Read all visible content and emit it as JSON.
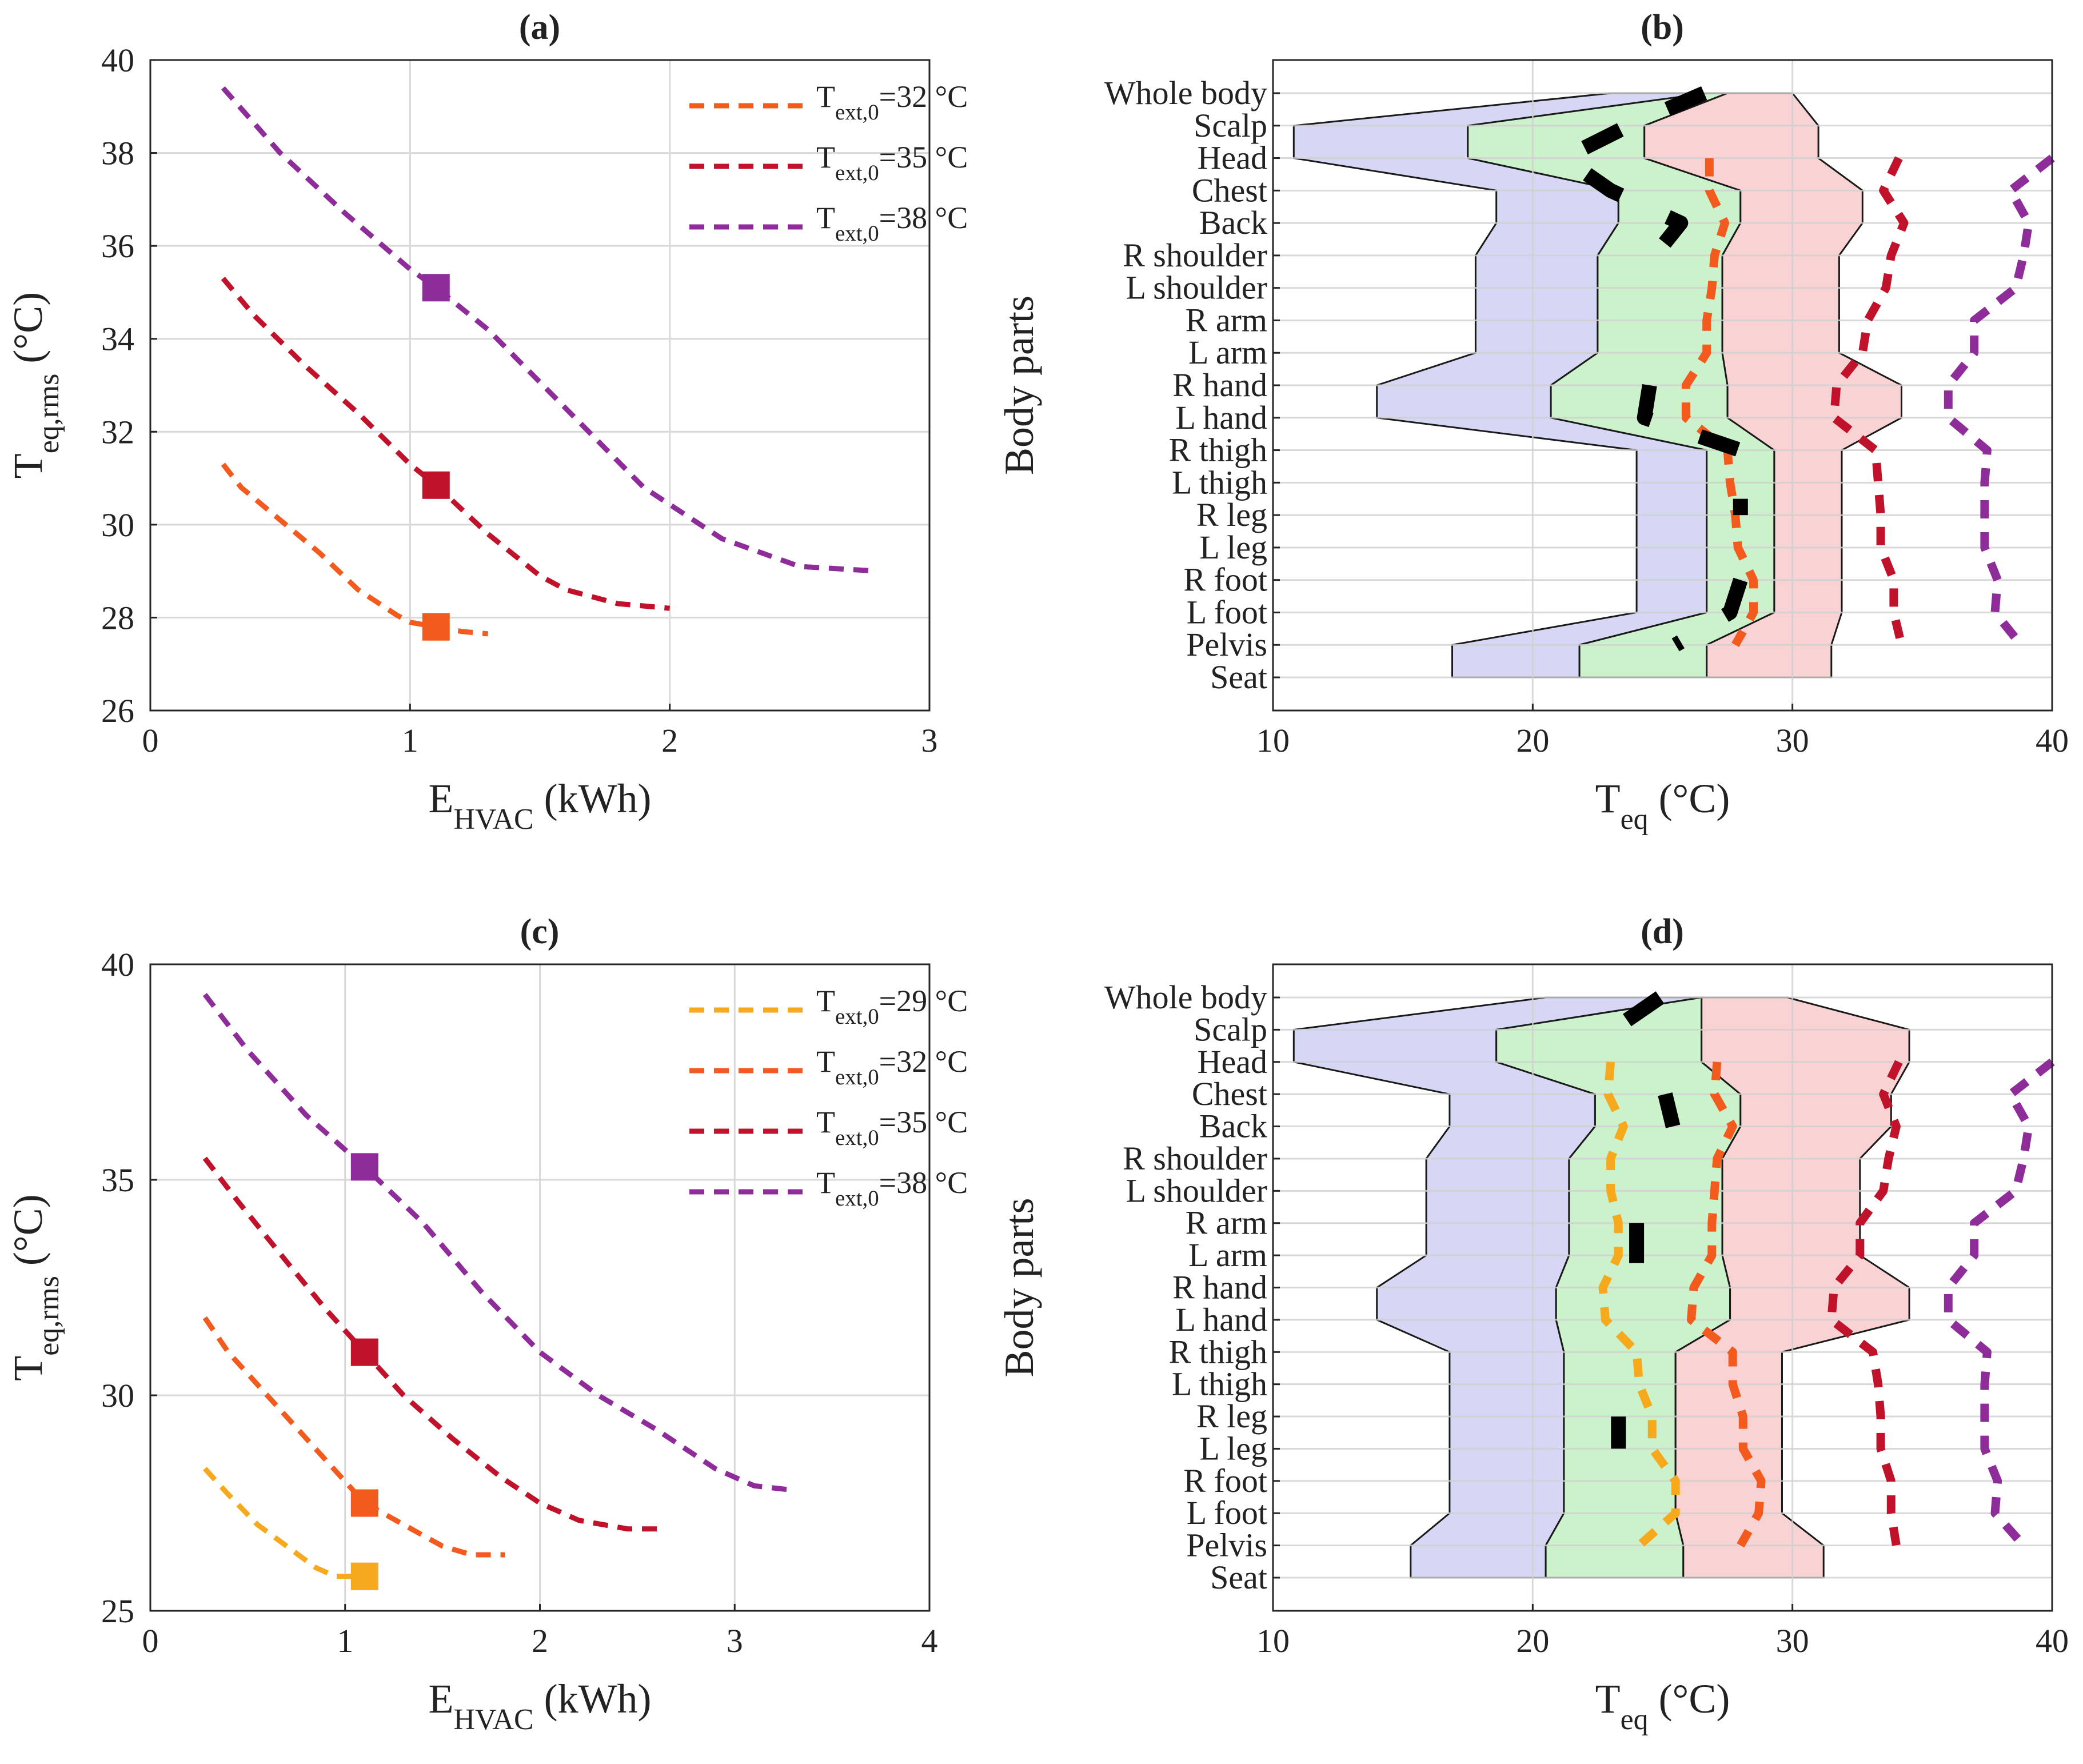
{
  "chart_data": [
    {
      "id": "a",
      "type": "line",
      "title": "(a)",
      "xlabel": "E",
      "xlabel_sub": "HVAC",
      "xlabel_unit": " (kWh)",
      "ylabel": "T",
      "ylabel_sub": "eq,rms",
      "ylabel_unit": " (°C)",
      "xlim": [
        0,
        3
      ],
      "ylim": [
        26,
        40
      ],
      "xticks": [
        0,
        1,
        2,
        3
      ],
      "yticks": [
        26,
        28,
        30,
        32,
        34,
        36,
        38,
        40
      ],
      "grid": true,
      "legend_position": "top-right",
      "series": [
        {
          "name": "T",
          "name_sub": "ext,0",
          "name_tail": "=32 °C",
          "color": "#f35a1e",
          "x": [
            0.28,
            0.35,
            0.5,
            0.65,
            0.8,
            0.95,
            1.0,
            1.1,
            1.2,
            1.3
          ],
          "y": [
            31.3,
            30.8,
            30.1,
            29.4,
            28.6,
            28.05,
            27.9,
            27.8,
            27.7,
            27.65
          ],
          "marker": {
            "x": 1.1,
            "y": 27.8
          }
        },
        {
          "name": "T",
          "name_sub": "ext,0",
          "name_tail": "=35 °C",
          "color": "#c0122b",
          "x": [
            0.28,
            0.4,
            0.6,
            0.8,
            1.0,
            1.1,
            1.3,
            1.5,
            1.6,
            1.8,
            2.0
          ],
          "y": [
            35.3,
            34.5,
            33.4,
            32.4,
            31.3,
            30.85,
            29.8,
            28.9,
            28.6,
            28.3,
            28.2
          ],
          "marker": {
            "x": 1.1,
            "y": 30.85
          }
        },
        {
          "name": "T",
          "name_sub": "ext,0",
          "name_tail": "=38 °C",
          "color": "#8e2c9a",
          "x": [
            0.28,
            0.5,
            0.75,
            1.0,
            1.1,
            1.3,
            1.6,
            1.9,
            2.2,
            2.5,
            2.8
          ],
          "y": [
            39.4,
            38.0,
            36.7,
            35.5,
            35.1,
            34.2,
            32.5,
            30.8,
            29.7,
            29.1,
            29.0
          ],
          "marker": {
            "x": 1.1,
            "y": 35.1
          }
        }
      ]
    },
    {
      "id": "b",
      "type": "area",
      "title": "(b)",
      "xlabel": "T",
      "xlabel_sub": "eq",
      "xlabel_unit": " (°C)",
      "ylabel": "Body parts",
      "xlim": [
        10,
        40
      ],
      "xticks": [
        10,
        20,
        30,
        40
      ],
      "grid": true,
      "categories": [
        "Whole body",
        "Scalp",
        "Head",
        "Chest",
        "Back",
        "R shoulder",
        "L shoulder",
        "R arm",
        "L arm",
        "R hand",
        "L hand",
        "R thigh",
        "L thigh",
        "R leg",
        "L leg",
        "R foot",
        "L foot",
        "Pelvis",
        "Seat"
      ],
      "bands": [
        {
          "name": "cold",
          "color": "#d6d6f5",
          "lower": [
            23,
            10.8,
            10.8,
            18.6,
            18.6,
            17.8,
            17.8,
            17.8,
            17.8,
            14.0,
            14.0,
            24.0,
            24.0,
            24.0,
            24.0,
            24.0,
            24.0,
            16.9,
            16.9
          ],
          "upper": [
            30.0,
            17.5,
            17.5,
            23.3,
            23.3,
            22.5,
            22.5,
            22.5,
            22.5,
            20.7,
            20.7,
            26.7,
            26.7,
            26.7,
            26.7,
            26.7,
            26.7,
            21.8,
            21.8
          ]
        },
        {
          "name": "neutral",
          "color": "#ccf2cc",
          "lower": [
            26.7,
            17.5,
            17.5,
            23.3,
            23.3,
            22.5,
            22.5,
            22.5,
            22.5,
            20.7,
            20.7,
            26.7,
            26.7,
            26.7,
            26.7,
            26.7,
            26.7,
            21.8,
            21.8
          ],
          "upper": [
            27.5,
            24.3,
            24.3,
            28.0,
            28.0,
            27.3,
            27.3,
            27.3,
            27.3,
            27.5,
            27.5,
            29.3,
            29.3,
            29.3,
            29.3,
            29.3,
            29.3,
            26.7,
            26.7
          ]
        },
        {
          "name": "warm",
          "color": "#f9d3d3",
          "lower": [
            27.5,
            24.3,
            24.3,
            28.0,
            28.0,
            27.3,
            27.3,
            27.3,
            27.3,
            27.5,
            27.5,
            29.3,
            29.3,
            29.3,
            29.3,
            29.3,
            29.3,
            26.7,
            26.7
          ],
          "upper": [
            30.0,
            31.0,
            31.0,
            32.7,
            32.7,
            31.8,
            31.8,
            31.8,
            31.8,
            34.2,
            34.2,
            31.9,
            31.9,
            31.9,
            31.9,
            31.9,
            31.9,
            31.5,
            31.5
          ]
        }
      ],
      "series": [
        {
          "name": "32 °C",
          "color": "#f35a1e",
          "values": [
            null,
            null,
            26.8,
            26.8,
            27.4,
            27.0,
            26.9,
            26.7,
            26.7,
            25.9,
            25.9,
            27.5,
            27.6,
            27.8,
            27.9,
            28.5,
            28.5,
            27.8,
            null
          ]
        },
        {
          "name": "35 °C",
          "color": "#c0122b",
          "values": [
            null,
            null,
            34.1,
            33.5,
            34.3,
            33.8,
            33.6,
            32.9,
            32.7,
            31.7,
            31.6,
            33.2,
            33.3,
            33.4,
            33.4,
            33.9,
            33.9,
            34.2,
            null
          ]
        },
        {
          "name": "38 °C",
          "color": "#8e2c9a",
          "values": [
            null,
            null,
            40.0,
            38.4,
            39.1,
            38.9,
            38.6,
            37.0,
            37.0,
            36.0,
            36.0,
            37.5,
            37.4,
            37.4,
            37.4,
            37.9,
            37.8,
            38.8,
            null
          ]
        },
        {
          "name": "thermostat",
          "color": "#000000",
          "values": [
            26.6,
            23.7,
            21.2,
            23.0,
            25.7,
            24.7,
            24.6,
            null,
            null,
            24.5,
            24.3,
            28.0,
            28.0,
            28.0,
            null,
            28.0,
            27.6,
            25.5,
            null
          ]
        }
      ]
    },
    {
      "id": "c",
      "type": "line",
      "title": "(c)",
      "xlabel": "E",
      "xlabel_sub": "HVAC",
      "xlabel_unit": " (kWh)",
      "ylabel": "T",
      "ylabel_sub": "eq,rms",
      "ylabel_unit": " (°C)",
      "xlim": [
        0,
        4
      ],
      "ylim": [
        25,
        40
      ],
      "xticks": [
        0,
        1,
        2,
        3,
        4
      ],
      "yticks": [
        25,
        30,
        35,
        40
      ],
      "grid": true,
      "legend_position": "top-right",
      "series": [
        {
          "name": "T",
          "name_sub": "ext,0",
          "name_tail": "=29 °C",
          "color": "#f6a91c",
          "x": [
            0.28,
            0.4,
            0.55,
            0.7,
            0.85,
            0.95,
            1.05,
            1.1
          ],
          "y": [
            28.3,
            27.7,
            27.0,
            26.5,
            26.0,
            25.8,
            25.8,
            25.8
          ],
          "marker": {
            "x": 1.1,
            "y": 25.8
          }
        },
        {
          "name": "T",
          "name_sub": "ext,0",
          "name_tail": "=32 °C",
          "color": "#f35a1e",
          "x": [
            0.28,
            0.4,
            0.6,
            0.8,
            1.0,
            1.1,
            1.3,
            1.5,
            1.65,
            1.82
          ],
          "y": [
            31.8,
            31.0,
            30.0,
            29.0,
            28.0,
            27.5,
            27.0,
            26.5,
            26.3,
            26.3
          ],
          "marker": {
            "x": 1.1,
            "y": 27.5
          }
        },
        {
          "name": "T",
          "name_sub": "ext,0",
          "name_tail": "=35 °C",
          "color": "#c0122b",
          "x": [
            0.28,
            0.45,
            0.7,
            0.9,
            1.1,
            1.3,
            1.55,
            1.8,
            2.0,
            2.2,
            2.45,
            2.65
          ],
          "y": [
            35.5,
            34.5,
            33.1,
            32.0,
            31.0,
            30.0,
            29.0,
            28.1,
            27.5,
            27.1,
            26.9,
            26.9
          ],
          "marker": {
            "x": 1.1,
            "y": 31.0
          }
        },
        {
          "name": "T",
          "name_sub": "ext,0",
          "name_tail": "=38 °C",
          "color": "#8e2c9a",
          "x": [
            0.28,
            0.5,
            0.8,
            1.1,
            1.4,
            1.7,
            2.0,
            2.3,
            2.6,
            2.9,
            3.1,
            3.3
          ],
          "y": [
            39.3,
            38.0,
            36.5,
            35.3,
            34.0,
            32.4,
            31.0,
            30.0,
            29.2,
            28.3,
            27.9,
            27.8
          ],
          "marker": {
            "x": 1.1,
            "y": 35.3
          }
        }
      ]
    },
    {
      "id": "d",
      "type": "area",
      "title": "(d)",
      "xlabel": "T",
      "xlabel_sub": "eq",
      "xlabel_unit": " (°C)",
      "ylabel": "Body parts",
      "xlim": [
        10,
        40
      ],
      "xticks": [
        10,
        20,
        30,
        40
      ],
      "grid": true,
      "categories": [
        "Whole body",
        "Scalp",
        "Head",
        "Chest",
        "Back",
        "R shoulder",
        "L shoulder",
        "R arm",
        "L arm",
        "R hand",
        "L hand",
        "R thigh",
        "L thigh",
        "R leg",
        "L leg",
        "R foot",
        "L foot",
        "Pelvis",
        "Seat"
      ],
      "bands": [
        {
          "name": "cold",
          "color": "#d6d6f5",
          "lower": [
            20.5,
            10.8,
            10.8,
            16.8,
            16.8,
            15.9,
            15.9,
            15.9,
            15.9,
            14.0,
            14.0,
            16.8,
            16.8,
            16.8,
            16.8,
            16.8,
            16.8,
            15.3,
            15.3
          ],
          "upper": [
            26.5,
            18.6,
            18.6,
            22.4,
            22.4,
            21.4,
            21.4,
            21.4,
            21.4,
            20.9,
            20.9,
            21.2,
            21.2,
            21.2,
            21.2,
            21.2,
            21.2,
            20.5,
            20.5
          ]
        },
        {
          "name": "neutral",
          "color": "#ccf2cc",
          "lower": [
            26.5,
            18.6,
            18.6,
            22.4,
            22.4,
            21.4,
            21.4,
            21.4,
            21.4,
            20.9,
            20.9,
            21.2,
            21.2,
            21.2,
            21.2,
            21.2,
            21.2,
            20.5,
            20.5
          ],
          "upper": [
            26.5,
            26.5,
            26.5,
            28.0,
            28.0,
            27.3,
            27.3,
            27.3,
            27.3,
            27.6,
            27.6,
            25.5,
            25.5,
            25.5,
            25.5,
            25.5,
            25.5,
            25.8,
            25.8
          ]
        },
        {
          "name": "warm",
          "color": "#f9d3d3",
          "lower": [
            26.5,
            26.5,
            26.5,
            28.0,
            28.0,
            27.3,
            27.3,
            27.3,
            27.3,
            27.6,
            27.6,
            25.5,
            25.5,
            25.5,
            25.5,
            25.5,
            25.5,
            25.8,
            25.8
          ],
          "upper": [
            29.8,
            34.5,
            34.5,
            33.8,
            33.8,
            32.6,
            32.6,
            32.6,
            32.6,
            34.5,
            34.5,
            29.6,
            29.6,
            29.6,
            29.6,
            29.6,
            29.6,
            31.2,
            31.2
          ]
        }
      ],
      "series": [
        {
          "name": "29 °C",
          "color": "#f6a91c",
          "values": [
            null,
            null,
            23.0,
            22.9,
            23.5,
            23.0,
            23.0,
            23.3,
            23.3,
            22.7,
            22.8,
            24.0,
            24.1,
            24.6,
            24.6,
            25.5,
            25.5,
            24.1,
            null
          ]
        },
        {
          "name": "32 °C",
          "color": "#f35a1e",
          "values": [
            null,
            null,
            27.1,
            27.0,
            27.7,
            27.1,
            27.0,
            26.9,
            26.9,
            26.2,
            26.1,
            27.7,
            27.7,
            28.1,
            28.1,
            28.8,
            28.7,
            28.0,
            null
          ]
        },
        {
          "name": "35 °C",
          "color": "#c0122b",
          "values": [
            null,
            null,
            34.1,
            33.5,
            34.0,
            33.7,
            33.5,
            32.6,
            32.6,
            31.6,
            31.5,
            33.1,
            33.3,
            33.4,
            33.4,
            33.8,
            33.8,
            34.0,
            null
          ]
        },
        {
          "name": "38 °C",
          "color": "#8e2c9a",
          "values": [
            null,
            null,
            40.0,
            38.4,
            39.1,
            38.9,
            38.6,
            37.0,
            37.0,
            36.0,
            36.0,
            37.5,
            37.4,
            37.4,
            37.4,
            37.9,
            37.8,
            38.9,
            null
          ]
        },
        {
          "name": "thermostat",
          "color": "#000000",
          "values": [
            24.9,
            23.1,
            null,
            25.1,
            25.4,
            null,
            null,
            24.0,
            24.0,
            24.0,
            null,
            null,
            null,
            23.3,
            23.3,
            null,
            null,
            null,
            23.1
          ]
        }
      ]
    }
  ]
}
